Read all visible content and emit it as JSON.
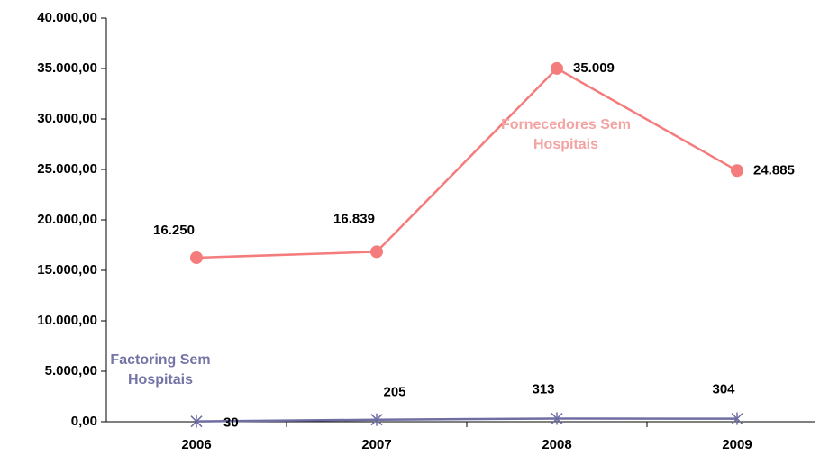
{
  "chart_data": {
    "type": "line",
    "categories": [
      "2006",
      "2007",
      "2008",
      "2009"
    ],
    "series": [
      {
        "name": "Fornecedores Sem Hospitais",
        "color": "#f47c7c",
        "label_color": "#f4a3a3",
        "marker": "circle",
        "values": [
          16250,
          16839,
          35009,
          24885
        ],
        "value_labels": [
          "16.250",
          "16.839",
          "35.009",
          "24.885"
        ]
      },
      {
        "name": "Factoring Sem Hospitais",
        "color": "#6e6ea3",
        "label_color": "#7474a6",
        "marker": "asterisk",
        "values": [
          30,
          205,
          313,
          304
        ],
        "value_labels": [
          "30",
          "205",
          "313",
          "304"
        ]
      }
    ],
    "ylim": [
      0,
      40000
    ],
    "yticks": [
      {
        "value": 0,
        "label": "0,00"
      },
      {
        "value": 5000,
        "label": "5.000,00"
      },
      {
        "value": 10000,
        "label": "10.000,00"
      },
      {
        "value": 15000,
        "label": "15.000,00"
      },
      {
        "value": 20000,
        "label": "20.000,00"
      },
      {
        "value": 25000,
        "label": "25.000,00"
      },
      {
        "value": 30000,
        "label": "30.000,00"
      },
      {
        "value": 35000,
        "label": "35.000,00"
      },
      {
        "value": 40000,
        "label": "40.000,00"
      }
    ],
    "grid": false
  }
}
